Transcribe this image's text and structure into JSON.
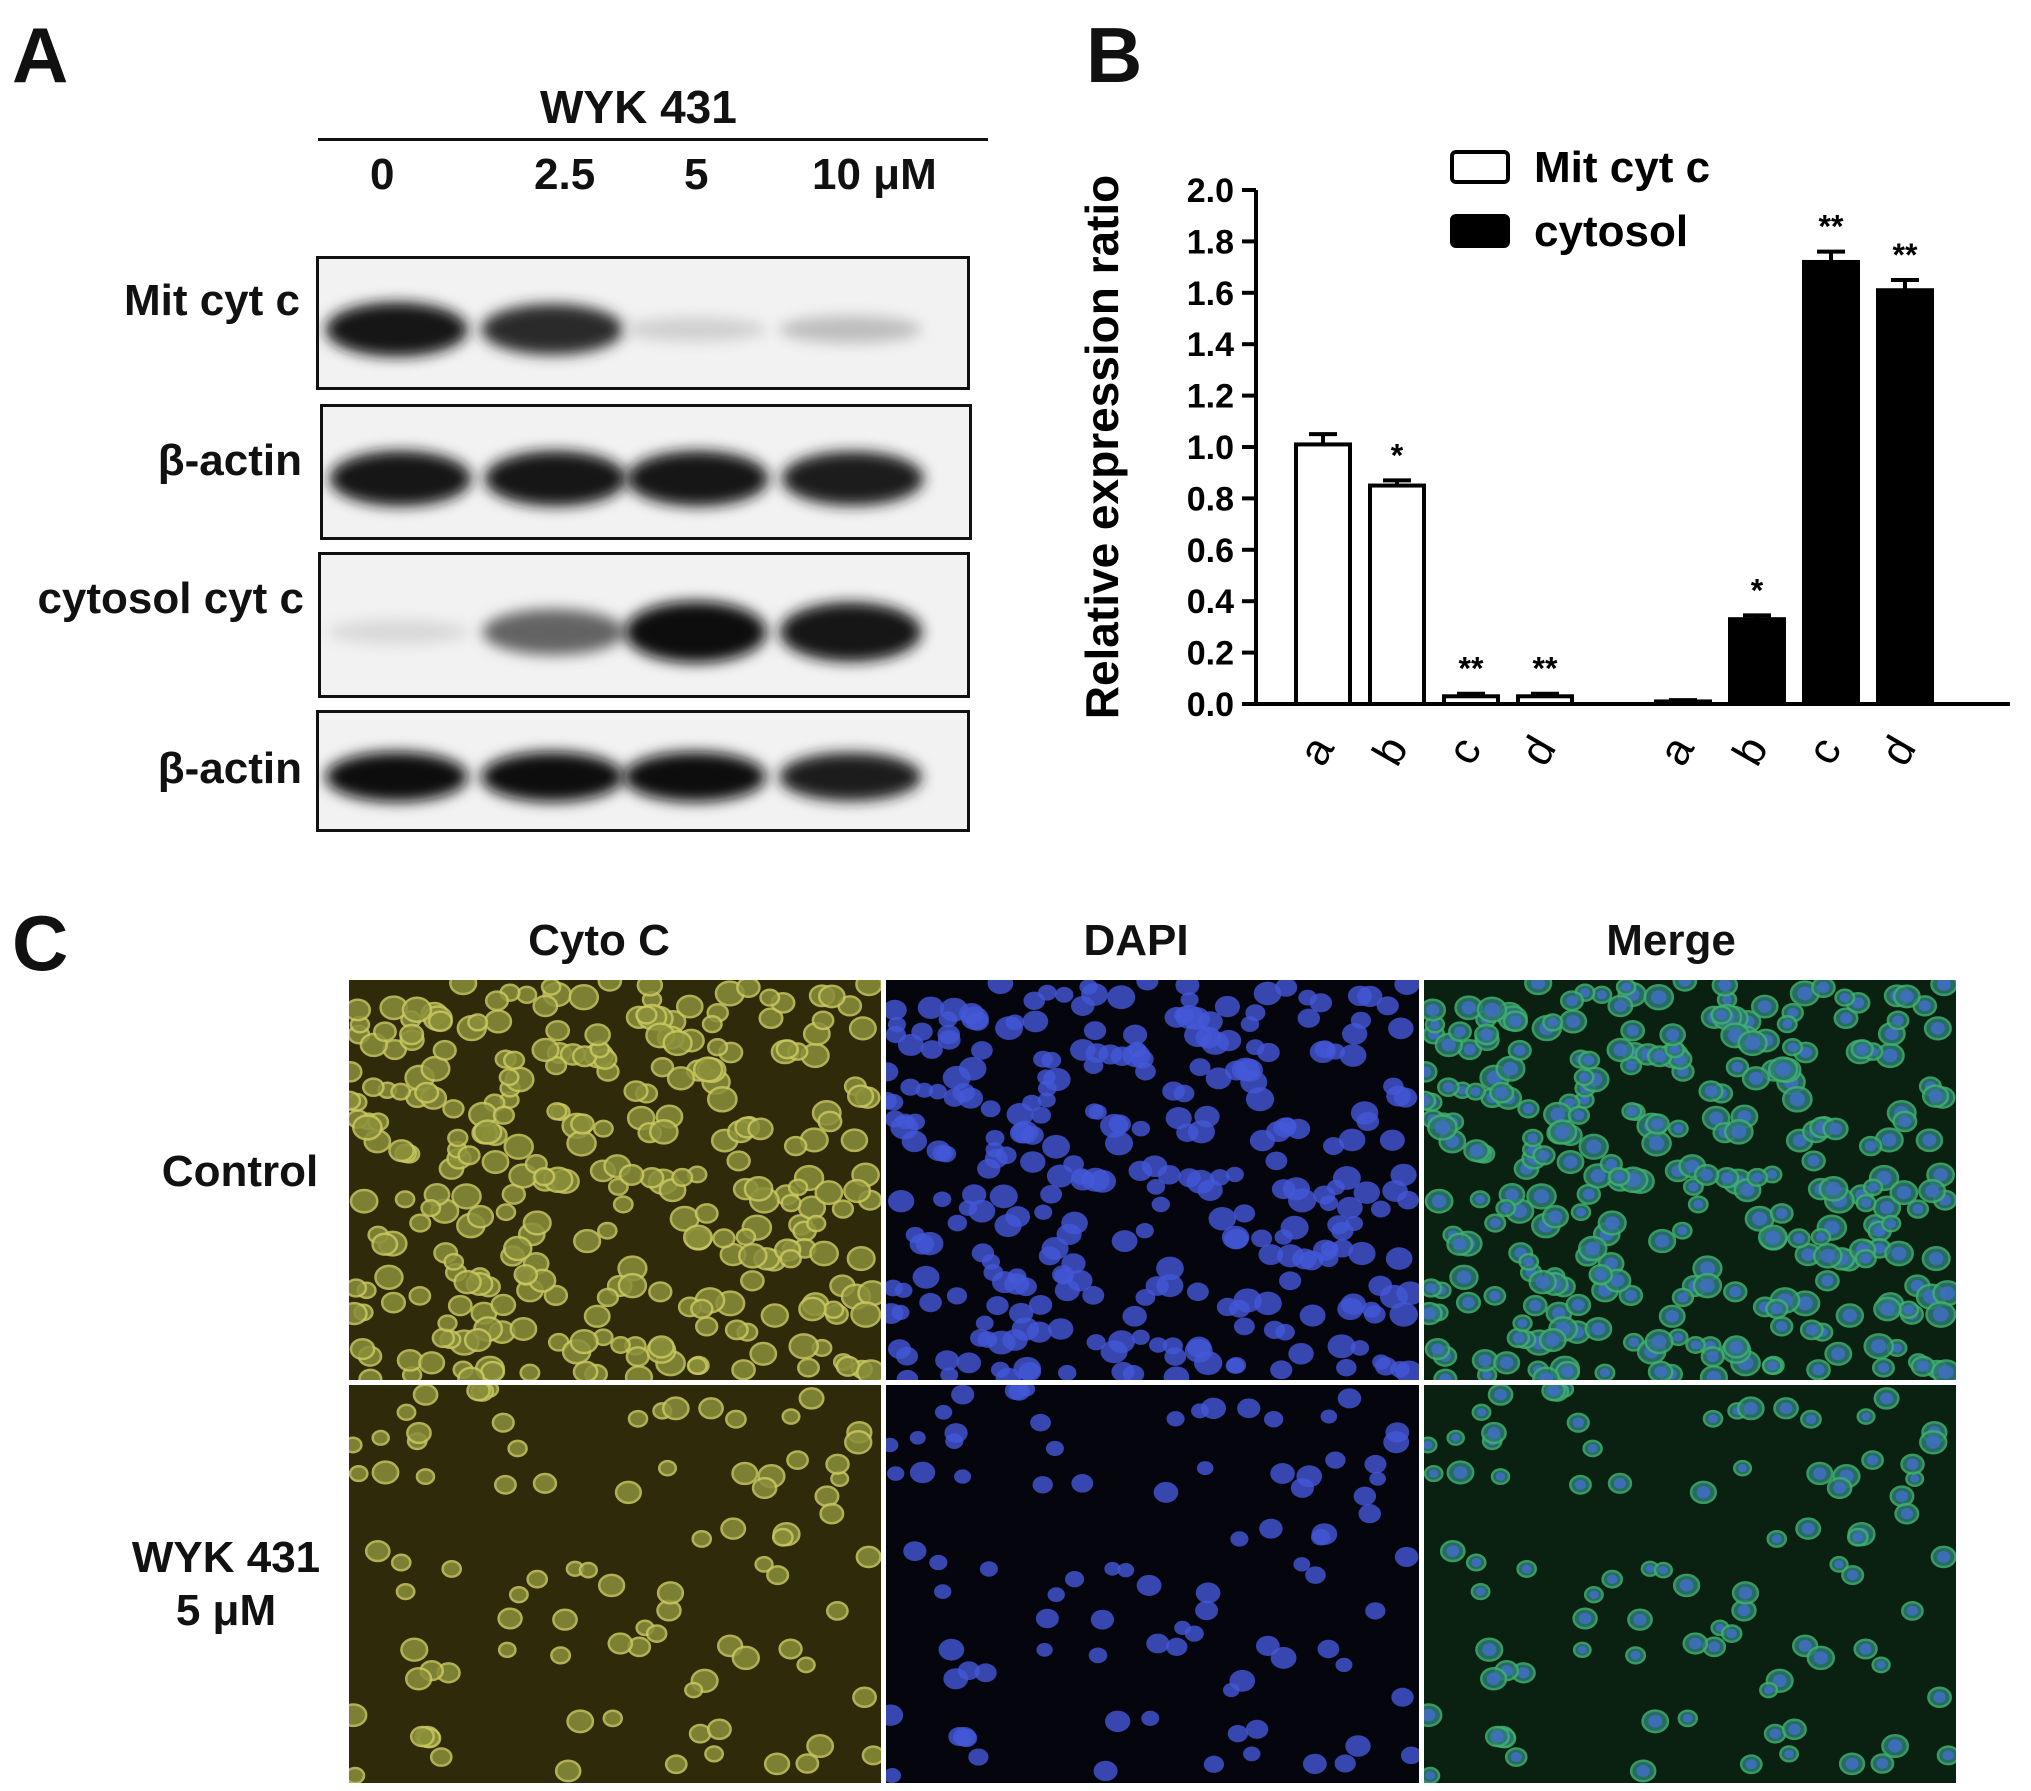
{
  "panel_a": {
    "label": "A",
    "treatment": "WYK 431",
    "lanes": [
      "0",
      "2.5",
      "5",
      "10 μM"
    ],
    "blots": [
      {
        "label": "Mit cyt c",
        "intensity": [
          0.95,
          0.85,
          0.12,
          0.2
        ]
      },
      {
        "label": "β-actin",
        "intensity": [
          0.95,
          0.95,
          0.95,
          0.92
        ]
      },
      {
        "label": "cytosol cyt c",
        "intensity": [
          0.08,
          0.6,
          1.0,
          0.95
        ]
      },
      {
        "label": "β-actin",
        "intensity": [
          0.97,
          0.97,
          0.97,
          0.92
        ]
      }
    ]
  },
  "panel_b": {
    "label": "B",
    "chart_data": {
      "type": "bar",
      "ylabel": "Relative expression ratio",
      "xlabel": "",
      "ylim": [
        0,
        2.0
      ],
      "yticks": [
        "0.0",
        "0.2",
        "0.4",
        "0.6",
        "0.8",
        "1.0",
        "1.2",
        "1.4",
        "1.6",
        "1.8",
        "2.0"
      ],
      "legend_position": "top-right",
      "categories": [
        "a",
        "b",
        "c",
        "d"
      ],
      "series": [
        {
          "name": "Mit cyt c",
          "color": "#ffffff",
          "values": [
            1.01,
            0.85,
            0.03,
            0.03
          ],
          "errors": [
            0.04,
            0.02,
            0.01,
            0.01
          ],
          "significance": [
            "",
            "*",
            "**",
            "**"
          ]
        },
        {
          "name": "cytosol",
          "color": "#000000",
          "values": [
            0.01,
            0.33,
            1.72,
            1.61
          ],
          "errors": [
            0.005,
            0.015,
            0.04,
            0.04
          ],
          "significance": [
            "",
            "*",
            "**",
            "**"
          ]
        }
      ]
    }
  },
  "panel_c": {
    "label": "C",
    "columns": [
      "Cyto C",
      "DAPI",
      "Merge"
    ],
    "rows": [
      {
        "label_line1": "Control",
        "label_line2": ""
      },
      {
        "label_line1": "WYK 431",
        "label_line2": "5 μM"
      }
    ]
  }
}
